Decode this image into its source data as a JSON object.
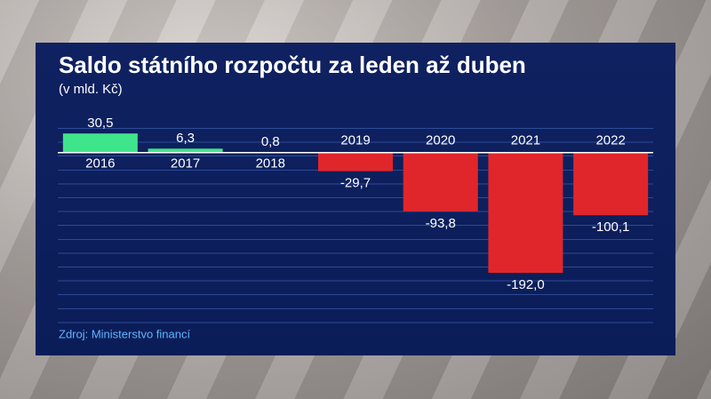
{
  "chart_data": {
    "type": "bar",
    "title": "Saldo státního rozpočtu za leden až duben",
    "subtitle": "(v mld. Kč)",
    "source": "Zdroj: Ministerstvo financí",
    "categories": [
      "2016",
      "2017",
      "2018",
      "2019",
      "2020",
      "2021",
      "2022"
    ],
    "values": [
      30.5,
      6.3,
      0.8,
      -29.7,
      -93.8,
      -192.0,
      -100.1
    ],
    "value_labels": [
      "30,5",
      "6,3",
      "0,8",
      "-29,7",
      "-93,8",
      "-192,0",
      "-100,1"
    ],
    "colors": [
      "#3ee58a",
      "#3ee58a",
      "#3ee58a",
      "#e0262b",
      "#e0262b",
      "#e0262b",
      "#e0262b"
    ],
    "ylim": [
      -270,
      45
    ]
  }
}
